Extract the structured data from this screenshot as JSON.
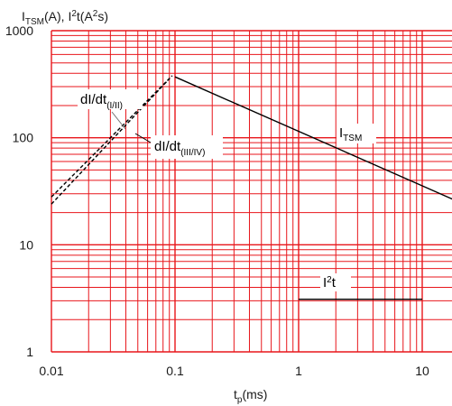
{
  "chart_data": {
    "type": "line",
    "x_scale": "log",
    "y_scale": "log",
    "xlim": [
      0.01,
      20
    ],
    "ylim": [
      1,
      1000
    ],
    "grid": true,
    "grid_color": "#e8161b",
    "x_ticks": [
      "0.01",
      "0.1",
      "1",
      "10"
    ],
    "y_ticks": [
      "1",
      "10",
      "100",
      "1000"
    ],
    "x_label": {
      "main": "t",
      "sub": "p",
      "unit": "(ms)"
    },
    "y_label": {
      "a": "I",
      "a_sub": "TSM",
      "b": "(A), I",
      "b_sup": "2",
      "c": "t(A",
      "c_sup": "2",
      "d": "s)"
    },
    "series": [
      {
        "name": "ITSM",
        "style": "solid",
        "color": "#000000",
        "x": [
          0.1,
          20
        ],
        "y": [
          370,
          25
        ]
      },
      {
        "name": "I2t",
        "style": "solid",
        "color": "#000000",
        "x": [
          1,
          10
        ],
        "y": [
          3.1,
          3.1
        ]
      },
      {
        "name": "dI/dt (I/II)",
        "style": "dashed",
        "color": "#000000",
        "x": [
          0.01,
          0.095
        ],
        "y": [
          28,
          380
        ]
      },
      {
        "name": "dI/dt (III/IV)",
        "style": "dashed",
        "color": "#000000",
        "x": [
          0.01,
          0.09
        ],
        "y": [
          24,
          355
        ]
      }
    ],
    "annotations": {
      "itsm": {
        "main": "I",
        "sub": "TSM"
      },
      "i2t": {
        "main": "I",
        "sup": "2",
        "tail": "t"
      },
      "didt1": {
        "main": "dI/dt",
        "sub": "(I/II)"
      },
      "didt2": {
        "main": "dI/dt",
        "sub": "(III/IV)"
      }
    }
  }
}
